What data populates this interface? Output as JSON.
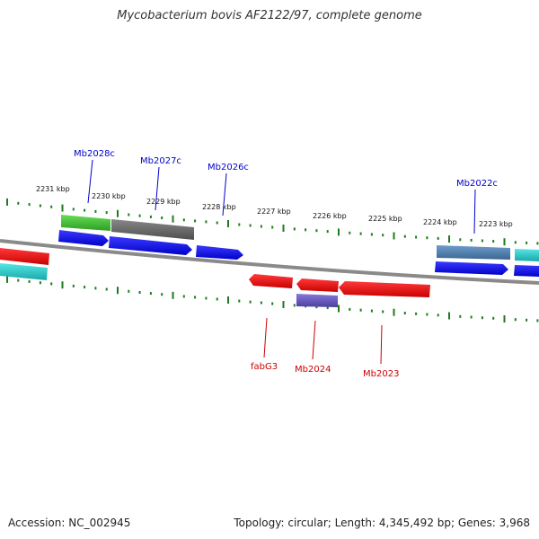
{
  "title": "Mycobacterium bovis AF2122/97, complete genome",
  "footer": {
    "accession": "Accession: NC_002945",
    "summary": "Topology: circular; Length: 4,345,492 bp; Genes: 3,968"
  },
  "scale_labels": [
    "2231 kbp",
    "2230 kbp",
    "2229 kbp",
    "2228 kbp",
    "2227 kbp",
    "2226 kbp",
    "2225 kbp",
    "2224 kbp",
    "2223 kbp"
  ],
  "gene_labels": [
    "Mb2028c",
    "Mb2027c",
    "Mb2026c",
    "Mb2022c",
    "fabG3",
    "Mb2024",
    "Mb2023"
  ],
  "colors": {
    "backbone": "#8a8a8a",
    "ticks": "#1f7a1f",
    "forward_label": "#0000cc",
    "reverse_label": "#cc0000",
    "cds_blue": "#0000ee",
    "cds_red": "#ee0000",
    "green": "#44bb33",
    "gray": "#666666",
    "steelblue": "#4a7aaa",
    "cyan": "#22cccc",
    "purple": "#6655bb"
  }
}
